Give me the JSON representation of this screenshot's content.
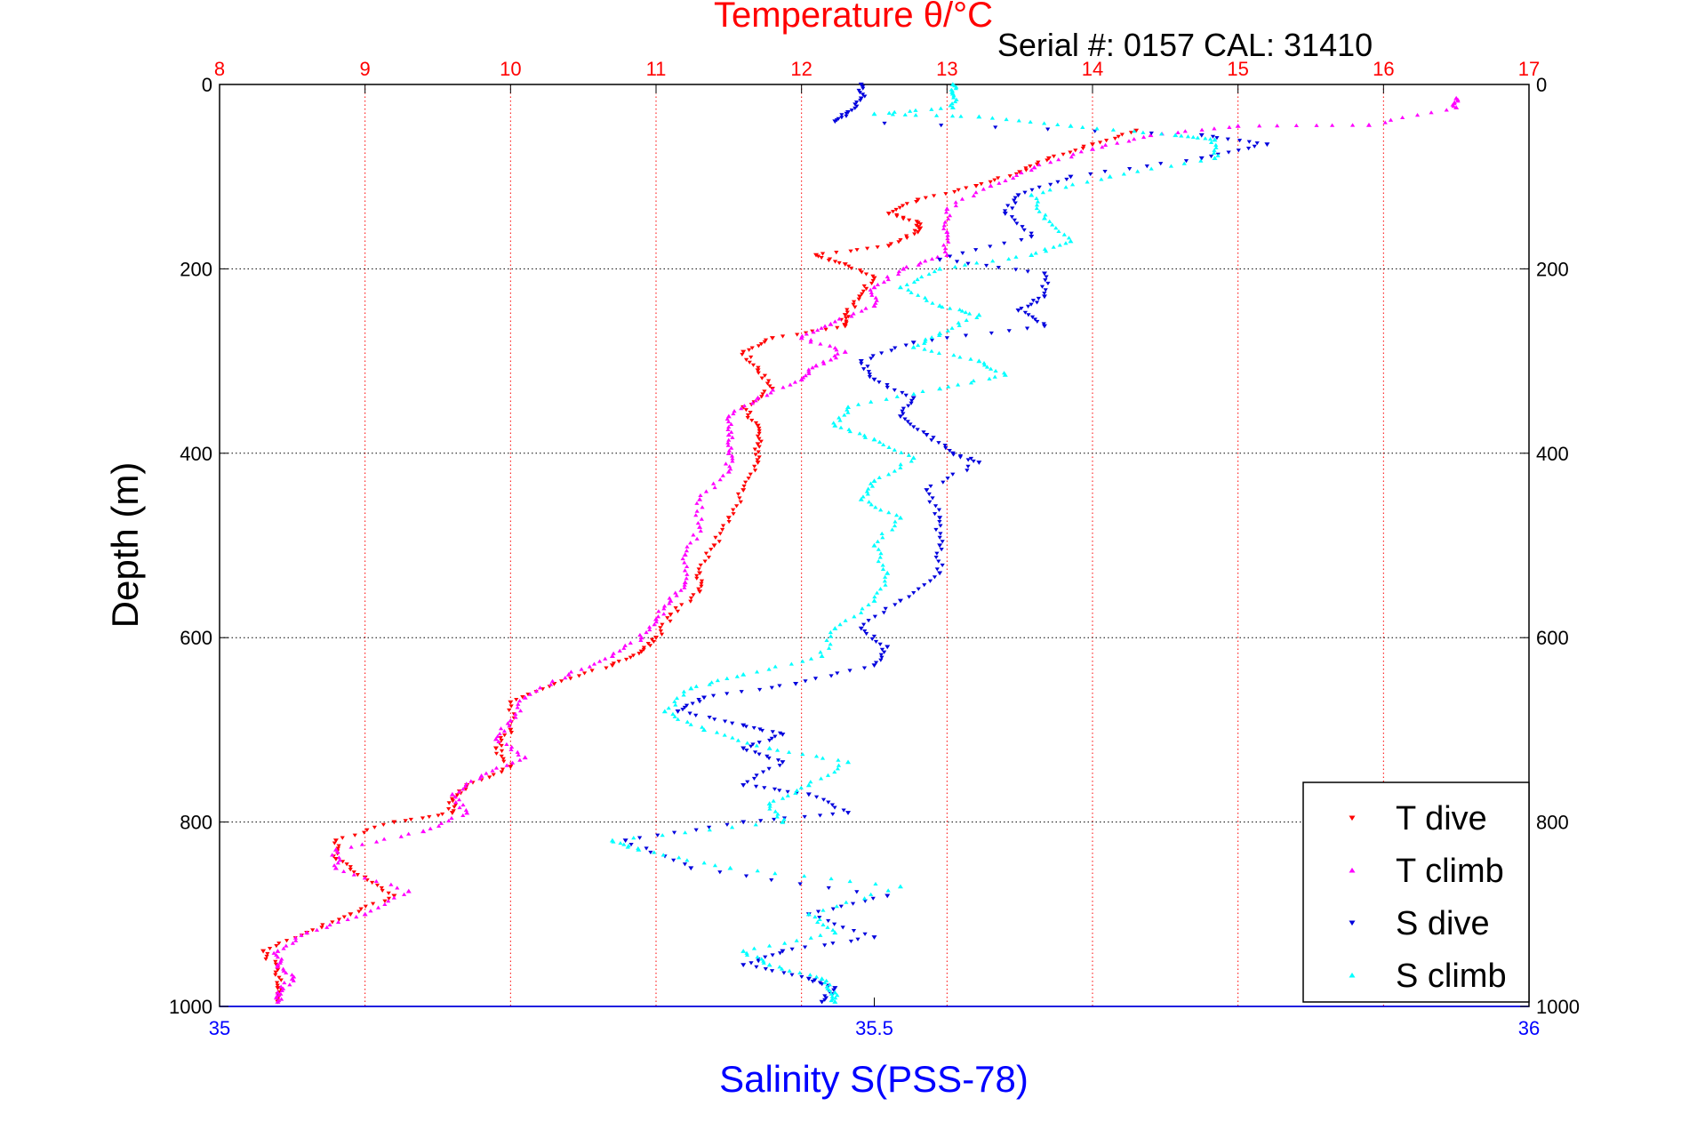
{
  "chart_data": {
    "type": "scatter",
    "title": "Temperature θ/°C",
    "subtitle": "Serial #: 0157  CAL: 31410",
    "ylabel": "Depth (m)",
    "xlabel_bottom": "Salinity S(PSS-78)",
    "xlim_top": [
      8,
      17
    ],
    "xlim_bottom": [
      35,
      36
    ],
    "ylim": [
      0,
      1000
    ],
    "y_reversed": true,
    "xticks_top": [
      "8",
      "9",
      "10",
      "11",
      "12",
      "13",
      "14",
      "15",
      "16",
      "17"
    ],
    "xticks_bottom": [
      "35",
      "35.5",
      "36"
    ],
    "yticks_left": [
      "0",
      "200",
      "400",
      "600",
      "800",
      "1000"
    ],
    "yticks_right": [
      "0",
      "200",
      "400",
      "600",
      "800",
      "1000"
    ],
    "grid": true,
    "legend_position": "bottom-right",
    "colors": {
      "temperature_axis": "#ff0000",
      "salinity_axis": "#0000ff",
      "t_dive": "#ff0000",
      "t_climb": "#ff00ff",
      "s_dive": "#0000dd",
      "s_climb": "#00ffff"
    },
    "series": [
      {
        "name": "T dive",
        "axis": "top",
        "color": "#ff0000",
        "marker": "triangle-down",
        "points": [
          [
            14.3,
            50
          ],
          [
            14.0,
            65
          ],
          [
            13.7,
            80
          ],
          [
            13.5,
            95
          ],
          [
            13.2,
            110
          ],
          [
            12.8,
            125
          ],
          [
            12.6,
            140
          ],
          [
            12.8,
            150
          ],
          [
            12.8,
            160
          ],
          [
            12.6,
            175
          ],
          [
            12.1,
            185
          ],
          [
            12.3,
            195
          ],
          [
            12.5,
            210
          ],
          [
            12.4,
            230
          ],
          [
            12.3,
            250
          ],
          [
            12.3,
            262
          ],
          [
            11.8,
            275
          ],
          [
            11.6,
            290
          ],
          [
            11.7,
            310
          ],
          [
            11.8,
            330
          ],
          [
            11.6,
            350
          ],
          [
            11.7,
            370
          ],
          [
            11.7,
            390
          ],
          [
            11.7,
            410
          ],
          [
            11.6,
            440
          ],
          [
            11.5,
            470
          ],
          [
            11.4,
            500
          ],
          [
            11.3,
            530
          ],
          [
            11.3,
            550
          ],
          [
            11.1,
            575
          ],
          [
            11.0,
            600
          ],
          [
            10.9,
            615
          ],
          [
            10.7,
            630
          ],
          [
            10.3,
            650
          ],
          [
            10.0,
            670
          ],
          [
            10.0,
            700
          ],
          [
            9.9,
            720
          ],
          [
            10.0,
            740
          ],
          [
            9.7,
            760
          ],
          [
            9.6,
            775
          ],
          [
            9.6,
            790
          ],
          [
            9.2,
            800
          ],
          [
            8.8,
            820
          ],
          [
            8.8,
            840
          ],
          [
            9.0,
            860
          ],
          [
            9.2,
            880
          ],
          [
            8.9,
            900
          ],
          [
            8.6,
            920
          ],
          [
            8.3,
            940
          ],
          [
            8.4,
            960
          ],
          [
            8.4,
            980
          ],
          [
            8.4,
            995
          ]
        ]
      },
      {
        "name": "T climb",
        "axis": "top",
        "color": "#ff00ff",
        "marker": "triangle-up",
        "points": [
          [
            16.5,
            15
          ],
          [
            16.5,
            25
          ],
          [
            15.9,
            44
          ],
          [
            15.0,
            45
          ],
          [
            14.4,
            55
          ],
          [
            14.0,
            70
          ],
          [
            13.6,
            90
          ],
          [
            13.3,
            110
          ],
          [
            13.0,
            135
          ],
          [
            13.0,
            160
          ],
          [
            13.0,
            185
          ],
          [
            12.7,
            200
          ],
          [
            12.5,
            220
          ],
          [
            12.5,
            240
          ],
          [
            12.2,
            260
          ],
          [
            12.0,
            275
          ],
          [
            12.3,
            290
          ],
          [
            12.1,
            305
          ],
          [
            12.0,
            320
          ],
          [
            11.7,
            340
          ],
          [
            11.5,
            360
          ],
          [
            11.5,
            380
          ],
          [
            11.5,
            400
          ],
          [
            11.5,
            420
          ],
          [
            11.3,
            450
          ],
          [
            11.3,
            480
          ],
          [
            11.2,
            510
          ],
          [
            11.2,
            540
          ],
          [
            11.1,
            560
          ],
          [
            11.0,
            580
          ],
          [
            10.9,
            600
          ],
          [
            10.7,
            620
          ],
          [
            10.4,
            640
          ],
          [
            10.1,
            665
          ],
          [
            10.0,
            690
          ],
          [
            9.9,
            710
          ],
          [
            10.1,
            730
          ],
          [
            9.8,
            750
          ],
          [
            9.6,
            770
          ],
          [
            9.7,
            790
          ],
          [
            9.4,
            810
          ],
          [
            8.8,
            830
          ],
          [
            8.8,
            850
          ],
          [
            9.3,
            875
          ],
          [
            9.0,
            900
          ],
          [
            8.6,
            920
          ],
          [
            8.4,
            940
          ],
          [
            8.4,
            955
          ],
          [
            8.5,
            970
          ],
          [
            8.4,
            985
          ],
          [
            8.4,
            995
          ]
        ]
      },
      {
        "name": "S dive",
        "axis": "bottom",
        "color": "#0000dd",
        "marker": "triangle-down",
        "points": [
          [
            35.49,
            0
          ],
          [
            35.49,
            15
          ],
          [
            35.48,
            30
          ],
          [
            35.47,
            40
          ],
          [
            35.75,
            55
          ],
          [
            35.8,
            65
          ],
          [
            35.75,
            80
          ],
          [
            35.65,
            100
          ],
          [
            35.61,
            120
          ],
          [
            35.6,
            140
          ],
          [
            35.62,
            165
          ],
          [
            35.55,
            190
          ],
          [
            35.63,
            205
          ],
          [
            35.63,
            230
          ],
          [
            35.61,
            245
          ],
          [
            35.63,
            262
          ],
          [
            35.53,
            280
          ],
          [
            35.49,
            300
          ],
          [
            35.5,
            320
          ],
          [
            35.53,
            340
          ],
          [
            35.52,
            360
          ],
          [
            35.54,
            380
          ],
          [
            35.56,
            400
          ],
          [
            35.58,
            410
          ],
          [
            35.54,
            440
          ],
          [
            35.55,
            470
          ],
          [
            35.55,
            500
          ],
          [
            35.55,
            530
          ],
          [
            35.52,
            560
          ],
          [
            35.49,
            590
          ],
          [
            35.51,
            610
          ],
          [
            35.5,
            630
          ],
          [
            35.44,
            650
          ],
          [
            35.37,
            665
          ],
          [
            35.35,
            680
          ],
          [
            35.4,
            695
          ],
          [
            35.43,
            705
          ],
          [
            35.4,
            720
          ],
          [
            35.43,
            735
          ],
          [
            35.4,
            760
          ],
          [
            35.45,
            770
          ],
          [
            35.48,
            790
          ],
          [
            35.4,
            800
          ],
          [
            35.31,
            820
          ],
          [
            35.36,
            850
          ],
          [
            35.51,
            880
          ],
          [
            35.45,
            900
          ],
          [
            35.5,
            925
          ],
          [
            35.43,
            940
          ],
          [
            35.4,
            955
          ],
          [
            35.45,
            970
          ],
          [
            35.47,
            980
          ],
          [
            35.46,
            995
          ]
        ]
      },
      {
        "name": "S climb",
        "axis": "bottom",
        "color": "#00ffff",
        "marker": "triangle-up",
        "points": [
          [
            35.56,
            0
          ],
          [
            35.56,
            10
          ],
          [
            35.56,
            25
          ],
          [
            35.5,
            32
          ],
          [
            35.58,
            35
          ],
          [
            35.65,
            45
          ],
          [
            35.73,
            55
          ],
          [
            35.76,
            60
          ],
          [
            35.76,
            80
          ],
          [
            35.68,
            100
          ],
          [
            35.62,
            120
          ],
          [
            35.63,
            145
          ],
          [
            35.65,
            170
          ],
          [
            35.62,
            185
          ],
          [
            35.55,
            200
          ],
          [
            35.52,
            220
          ],
          [
            35.55,
            240
          ],
          [
            35.58,
            250
          ],
          [
            35.55,
            270
          ],
          [
            35.53,
            285
          ],
          [
            35.58,
            300
          ],
          [
            35.6,
            315
          ],
          [
            35.55,
            330
          ],
          [
            35.48,
            350
          ],
          [
            35.47,
            370
          ],
          [
            35.5,
            385
          ],
          [
            35.53,
            405
          ],
          [
            35.5,
            430
          ],
          [
            35.49,
            450
          ],
          [
            35.52,
            470
          ],
          [
            35.5,
            500
          ],
          [
            35.51,
            530
          ],
          [
            35.5,
            560
          ],
          [
            35.47,
            590
          ],
          [
            35.46,
            620
          ],
          [
            35.4,
            640
          ],
          [
            35.36,
            655
          ],
          [
            35.34,
            680
          ],
          [
            35.37,
            700
          ],
          [
            35.42,
            720
          ],
          [
            35.48,
            735
          ],
          [
            35.45,
            760
          ],
          [
            35.42,
            780
          ],
          [
            35.43,
            800
          ],
          [
            35.3,
            820
          ],
          [
            35.32,
            830
          ],
          [
            35.39,
            850
          ],
          [
            35.52,
            870
          ],
          [
            35.45,
            900
          ],
          [
            35.47,
            920
          ],
          [
            35.4,
            940
          ],
          [
            35.42,
            955
          ],
          [
            35.46,
            970
          ],
          [
            35.47,
            985
          ],
          [
            35.47,
            995
          ]
        ]
      }
    ]
  }
}
